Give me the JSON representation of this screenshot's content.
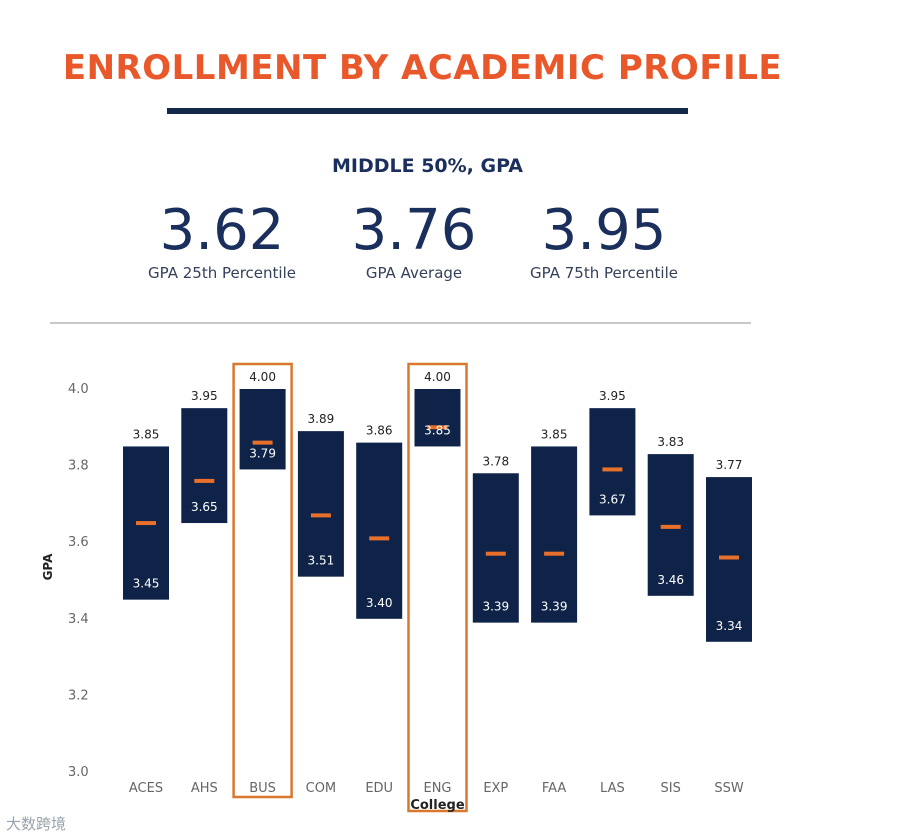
{
  "page": {
    "title": "ENROLLMENT BY ACADEMIC PROFILE",
    "section_heading": "MIDDLE 50%, GPA",
    "footer_note": "大数跨境"
  },
  "stats": [
    {
      "value": "3.62",
      "label": "GPA 25th Percentile"
    },
    {
      "value": "3.76",
      "label": "GPA Average"
    },
    {
      "value": "3.95",
      "label": "GPA 75th Percentile"
    }
  ],
  "colors": {
    "title": "#e8582a",
    "navy": "#13294b",
    "bar": "#0f2348",
    "median": "#e8702a",
    "highlight": "#d9782f",
    "axis_text": "#666666"
  },
  "chart_data": {
    "type": "bar",
    "subtype": "floating range (middle 50%) with average marker",
    "xlabel": "College",
    "ylabel": "GPA",
    "ylim": [
      3.0,
      4.0
    ],
    "yticks": [
      "3.0",
      "3.2",
      "3.4",
      "3.6",
      "3.8",
      "4.0"
    ],
    "categories": [
      "ACES",
      "AHS",
      "BUS",
      "COM",
      "EDU",
      "ENG",
      "EXP",
      "FAA",
      "LAS",
      "SIS",
      "SSW"
    ],
    "series": [
      {
        "name": "GPA 75th Percentile",
        "values": [
          3.85,
          3.95,
          4.0,
          3.89,
          3.86,
          4.0,
          3.78,
          3.85,
          3.95,
          3.83,
          3.77
        ],
        "labels": [
          "3.85",
          "3.95",
          "4.00",
          "3.89",
          "3.86",
          "4.00",
          "3.78",
          "3.85",
          "3.95",
          "3.83",
          "3.77"
        ]
      },
      {
        "name": "GPA 25th Percentile",
        "values": [
          3.45,
          3.65,
          3.79,
          3.51,
          3.4,
          3.85,
          3.39,
          3.39,
          3.67,
          3.46,
          3.34
        ],
        "labels": [
          "3.45",
          "3.65",
          "3.79",
          "3.51",
          "3.40",
          "3.85",
          "3.39",
          "3.39",
          "3.67",
          "3.46",
          "3.34"
        ]
      },
      {
        "name": "GPA Average",
        "values": [
          3.65,
          3.76,
          3.86,
          3.67,
          3.61,
          3.9,
          3.57,
          3.57,
          3.79,
          3.64,
          3.56
        ]
      }
    ],
    "highlighted_categories": [
      "BUS",
      "ENG"
    ]
  }
}
